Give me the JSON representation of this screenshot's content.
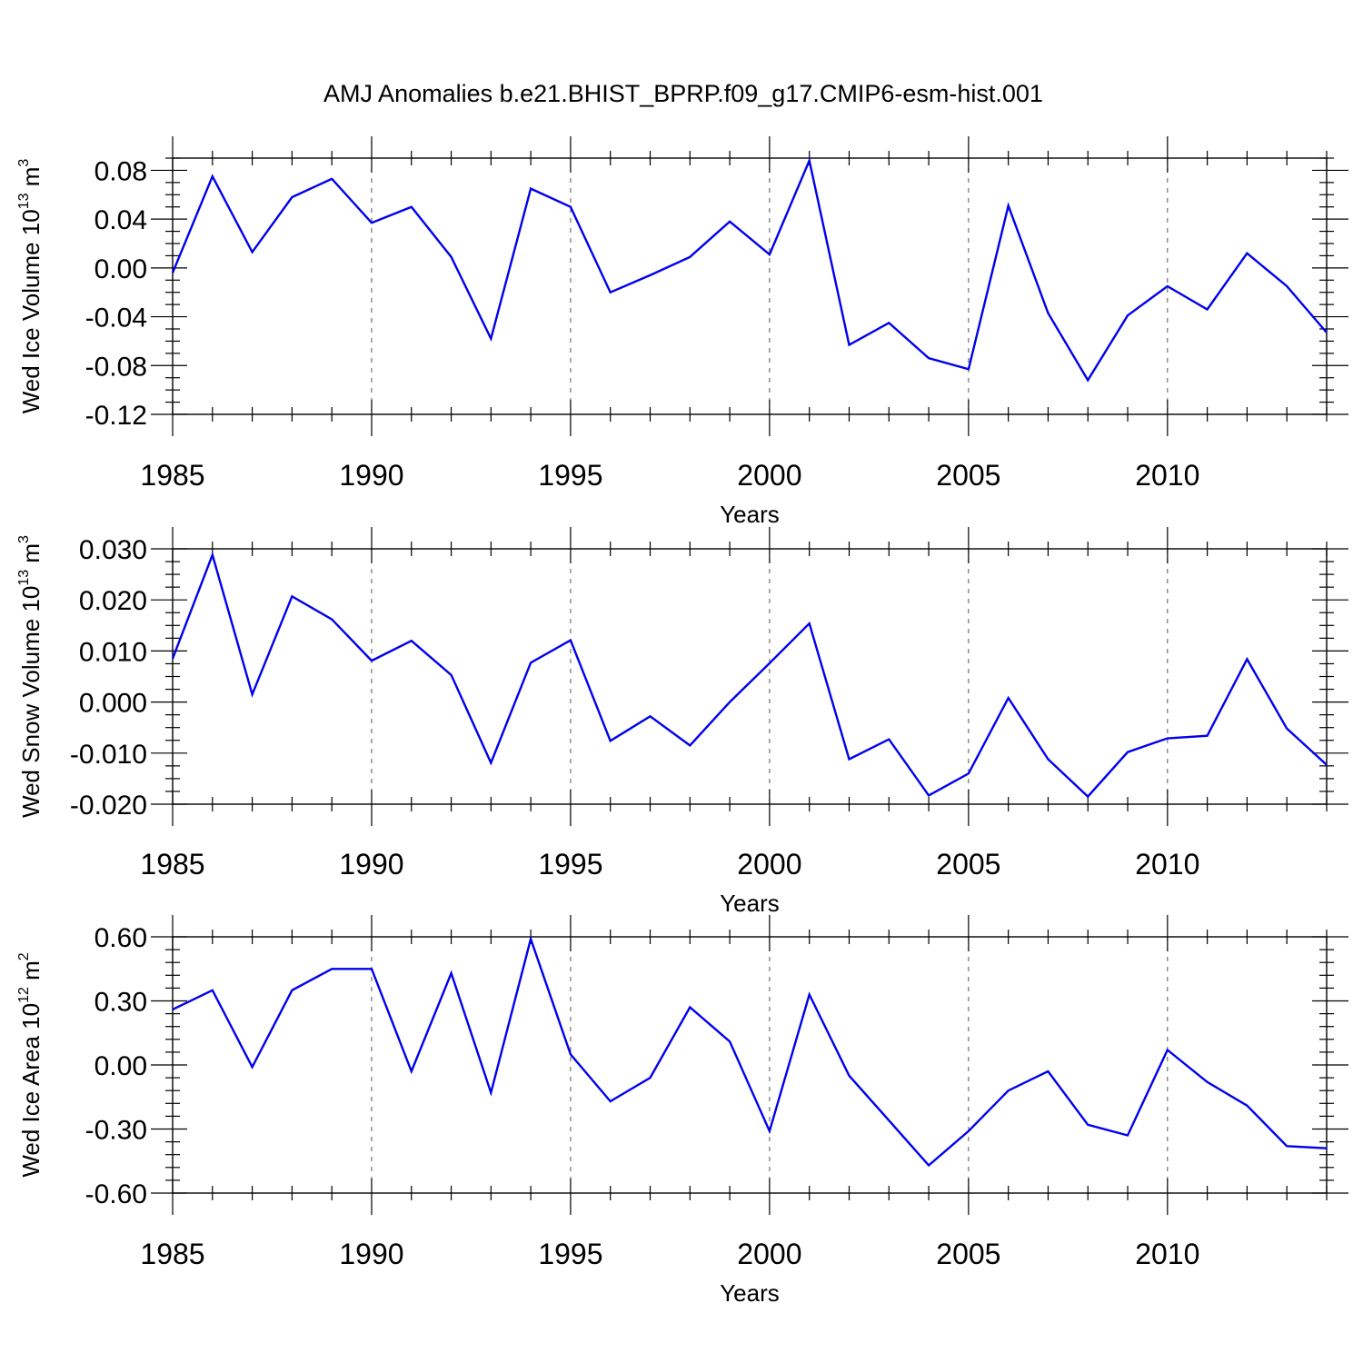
{
  "title": "AMJ Anomalies b.e21.BHIST_BPRP.f09_g17.CMIP6-esm-hist.001",
  "chart_data": [
    {
      "type": "line",
      "ylabel": "Wed Ice Volume 10",
      "ylabel_exp": "13",
      "ylabel_unit": "m",
      "ylabel_unit_exp": "3",
      "xlabel": "Years",
      "xlim": [
        1985,
        2014
      ],
      "ylim": [
        -0.12,
        0.09
      ],
      "xticks": [
        1985,
        1990,
        1995,
        2000,
        2005,
        2010
      ],
      "xtick_labels": [
        "1985",
        "1990",
        "1995",
        "2000",
        "2005",
        "2010"
      ],
      "yticks": [
        -0.12,
        -0.08,
        -0.04,
        0.0,
        0.04,
        0.08
      ],
      "ytick_labels": [
        "-0.12",
        "-0.08",
        "-0.04",
        "0.00",
        "0.04",
        "0.08"
      ],
      "yminor_step": 0.01,
      "color": "#0000ee",
      "x": [
        1985,
        1986,
        1987,
        1988,
        1989,
        1990,
        1991,
        1992,
        1993,
        1994,
        1995,
        1996,
        1997,
        1998,
        1999,
        2000,
        2001,
        2002,
        2003,
        2004,
        2005,
        2006,
        2007,
        2008,
        2009,
        2010,
        2011,
        2012,
        2013,
        2014
      ],
      "values": [
        -0.004,
        0.075,
        0.013,
        0.058,
        0.073,
        0.037,
        0.05,
        0.009,
        -0.058,
        0.065,
        0.05,
        -0.02,
        -0.006,
        0.009,
        0.038,
        0.011,
        0.088,
        -0.063,
        -0.045,
        -0.074,
        -0.083,
        0.051,
        -0.037,
        -0.092,
        -0.039,
        -0.015,
        -0.034,
        0.012,
        -0.015,
        -0.053
      ]
    },
    {
      "type": "line",
      "ylabel": "Wed Snow Volume 10",
      "ylabel_exp": "13",
      "ylabel_unit": "m",
      "ylabel_unit_exp": "3",
      "xlabel": "Years",
      "xlim": [
        1985,
        2014
      ],
      "ylim": [
        -0.02,
        0.03
      ],
      "xticks": [
        1985,
        1990,
        1995,
        2000,
        2005,
        2010
      ],
      "xtick_labels": [
        "1985",
        "1990",
        "1995",
        "2000",
        "2005",
        "2010"
      ],
      "yticks": [
        -0.02,
        -0.01,
        0.0,
        0.01,
        0.02,
        0.03
      ],
      "ytick_labels": [
        "-0.020",
        "-0.010",
        "0.000",
        "0.010",
        "0.020",
        "0.030"
      ],
      "yminor_step": 0.0025,
      "color": "#0000ee",
      "x": [
        1985,
        1986,
        1987,
        1988,
        1989,
        1990,
        1991,
        1992,
        1993,
        1994,
        1995,
        1996,
        1997,
        1998,
        1999,
        2000,
        2001,
        2002,
        2003,
        2004,
        2005,
        2006,
        2007,
        2008,
        2009,
        2010,
        2011,
        2012,
        2013,
        2014
      ],
      "values": [
        0.0085,
        0.0288,
        0.0015,
        0.0207,
        0.0162,
        0.0081,
        0.012,
        0.0053,
        -0.0119,
        0.0077,
        0.0121,
        -0.0076,
        -0.0028,
        -0.0085,
        0.0,
        0.0076,
        0.0154,
        -0.0112,
        -0.0073,
        -0.0183,
        -0.014,
        0.0008,
        -0.0112,
        -0.0185,
        -0.0098,
        -0.0071,
        -0.0066,
        0.0084,
        -0.0052,
        -0.0123
      ]
    },
    {
      "type": "line",
      "ylabel": "Wed Ice Area 10",
      "ylabel_exp": "12",
      "ylabel_unit": "m",
      "ylabel_unit_exp": "2",
      "xlabel": "Years",
      "xlim": [
        1985,
        2014
      ],
      "ylim": [
        -0.6,
        0.6
      ],
      "xticks": [
        1985,
        1990,
        1995,
        2000,
        2005,
        2010
      ],
      "xtick_labels": [
        "1985",
        "1990",
        "1995",
        "2000",
        "2005",
        "2010"
      ],
      "yticks": [
        -0.6,
        -0.3,
        0.0,
        0.3,
        0.6
      ],
      "ytick_labels": [
        "-0.60",
        "-0.30",
        "0.00",
        "0.30",
        "0.60"
      ],
      "yminor_step": 0.06,
      "color": "#0000ee",
      "x": [
        1985,
        1986,
        1987,
        1988,
        1989,
        1990,
        1991,
        1992,
        1993,
        1994,
        1995,
        1996,
        1997,
        1998,
        1999,
        2000,
        2001,
        2002,
        2003,
        2004,
        2005,
        2006,
        2007,
        2008,
        2009,
        2010,
        2011,
        2012,
        2013,
        2014
      ],
      "values": [
        0.26,
        0.35,
        -0.01,
        0.35,
        0.45,
        0.45,
        -0.03,
        0.43,
        -0.13,
        0.59,
        0.05,
        -0.17,
        -0.06,
        0.27,
        0.11,
        -0.31,
        0.33,
        -0.05,
        -0.26,
        -0.47,
        -0.31,
        -0.12,
        -0.03,
        -0.28,
        -0.33,
        0.07,
        -0.08,
        -0.19,
        -0.38,
        -0.39
      ]
    }
  ]
}
